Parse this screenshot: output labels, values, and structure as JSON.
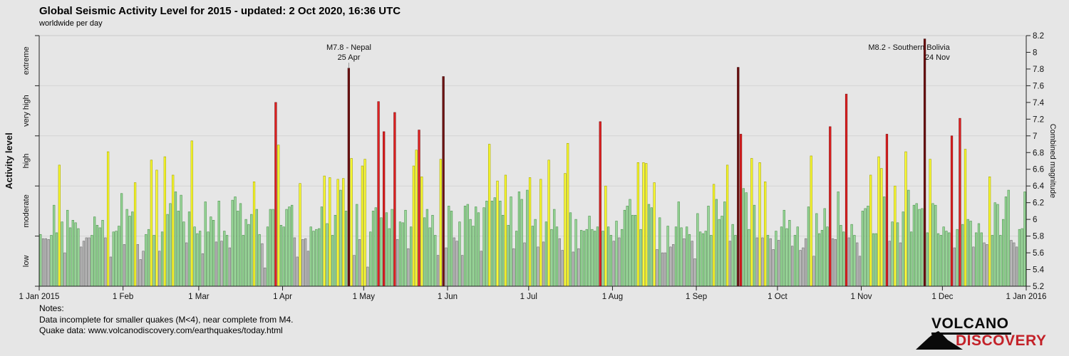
{
  "header": {
    "title": "Global Seismic Activity Level for 2015 - updated:  2 Oct 2020, 16:36 UTC",
    "subtitle": "worldwide per day"
  },
  "notes": {
    "label": "Notes:",
    "line1": "Data incomplete for smaller quakes (M<4), near complete from M4.",
    "line2": "Quake data: www.volcanodiscovery.com/earthquakes/today.html"
  },
  "logo": {
    "line1": "VOLCANO",
    "line2": "DISCOVERY"
  },
  "chart_data": {
    "type": "bar",
    "title": "Global Seismic Activity Level for 2015",
    "start_date": "2015-01-01",
    "x_ticks": [
      "1 Jan 2015",
      "1 Feb",
      "1 Mar",
      "1 Apr",
      "1 May",
      "1 Jun",
      "1 Jul",
      "1 Aug",
      "1 Sep",
      "1 Oct",
      "1 Nov",
      "1 Dec",
      "1 Jan 2016"
    ],
    "month_lengths": [
      31,
      28,
      31,
      30,
      31,
      30,
      31,
      31,
      30,
      31,
      30,
      31
    ],
    "y_axis_left": {
      "title": "Activity level"
    },
    "y_axis_right": {
      "title": "Combined magnitude",
      "min": 5.2,
      "max": 8.2,
      "step": 0.2
    },
    "grid": true,
    "activity_bands": [
      {
        "label": "low",
        "min": 5.2,
        "max": 5.8,
        "fill": "#b9b9b9",
        "stroke": "#6f6f6f"
      },
      {
        "label": "moderate",
        "min": 5.8,
        "max": 6.4,
        "fill": "#99d699",
        "stroke": "#4c934c"
      },
      {
        "label": "high",
        "min": 6.4,
        "max": 7.0,
        "fill": "#fbfb33",
        "stroke": "#a3a300"
      },
      {
        "label": "very high",
        "min": 7.0,
        "max": 7.6,
        "fill": "#e32021",
        "stroke": "#7e0f0f"
      },
      {
        "label": "extreme",
        "min": 7.6,
        "max": 8.3,
        "fill": "#6e1111",
        "stroke": "#420808"
      }
    ],
    "annotations": [
      {
        "lines": [
          "M7.8 - Nepal",
          "25 Apr"
        ],
        "day_of_year": 115,
        "align": "center",
        "connector": true
      },
      {
        "lines": [
          "M8.2 - Southern Bolivia",
          "24 Nov"
        ],
        "day_of_year": 328,
        "align": "end",
        "connector": false
      }
    ],
    "daily_magnitudes": [
      5.82,
      5.77,
      5.77,
      5.76,
      5.81,
      6.17,
      5.84,
      6.65,
      5.97,
      5.6,
      6.11,
      5.9,
      5.99,
      5.96,
      5.89,
      5.67,
      5.74,
      5.78,
      5.78,
      5.81,
      6.03,
      5.93,
      5.9,
      5.99,
      5.78,
      6.81,
      5.55,
      5.85,
      5.86,
      5.92,
      6.31,
      5.7,
      6.12,
      6.04,
      6.09,
      6.44,
      5.7,
      5.52,
      5.62,
      5.82,
      5.88,
      6.71,
      5.81,
      6.59,
      5.62,
      5.85,
      6.75,
      6.06,
      6.19,
      6.53,
      6.33,
      6.1,
      6.29,
      5.97,
      5.72,
      6.09,
      6.94,
      5.91,
      5.83,
      5.86,
      5.59,
      6.21,
      5.85,
      6.03,
      5.99,
      5.73,
      6.22,
      5.74,
      5.86,
      5.81,
      5.66,
      6.23,
      6.27,
      6.1,
      6.19,
      5.81,
      6.0,
      5.94,
      6.06,
      6.45,
      6.12,
      5.82,
      5.71,
      5.42,
      5.91,
      6.12,
      6.12,
      7.4,
      6.89,
      5.93,
      5.91,
      6.12,
      6.15,
      6.17,
      5.78,
      5.55,
      6.43,
      5.76,
      5.77,
      5.62,
      5.91,
      5.86,
      5.88,
      5.89,
      6.15,
      6.52,
      5.95,
      6.5,
      5.81,
      6.05,
      6.48,
      6.35,
      6.49,
      6.1,
      7.81,
      6.73,
      5.57,
      6.18,
      5.76,
      6.64,
      6.72,
      5.43,
      5.85,
      6.1,
      6.14,
      7.41,
      6.02,
      7.05,
      6.08,
      5.89,
      6.12,
      7.28,
      5.76,
      5.97,
      5.96,
      6.11,
      5.65,
      5.91,
      6.64,
      6.83,
      7.07,
      6.51,
      6.02,
      6.12,
      5.9,
      6.05,
      5.81,
      5.57,
      6.72,
      7.71,
      5.66,
      6.16,
      6.1,
      5.78,
      5.74,
      5.97,
      5.57,
      6.16,
      6.18,
      6.0,
      5.92,
      6.15,
      6.08,
      5.62,
      6.14,
      6.22,
      6.9,
      6.22,
      6.26,
      6.46,
      6.22,
      6.05,
      6.53,
      5.93,
      6.27,
      5.65,
      5.86,
      6.33,
      6.24,
      5.72,
      6.35,
      6.5,
      5.92,
      6.0,
      5.67,
      6.48,
      5.73,
      5.97,
      6.71,
      5.88,
      6.12,
      5.91,
      5.77,
      5.63,
      6.55,
      6.91,
      6.08,
      5.61,
      6.0,
      5.65,
      5.87,
      5.86,
      5.88,
      6.04,
      5.88,
      5.86,
      5.91,
      7.17,
      5.86,
      6.4,
      5.91,
      5.81,
      5.74,
      5.98,
      5.78,
      5.88,
      6.11,
      6.16,
      6.24,
      6.05,
      6.05,
      6.68,
      5.88,
      6.68,
      6.67,
      6.18,
      6.14,
      6.44,
      5.64,
      6.02,
      5.6,
      5.6,
      5.92,
      5.67,
      5.7,
      5.91,
      6.21,
      5.9,
      5.77,
      5.91,
      5.82,
      5.74,
      5.53,
      6.07,
      5.85,
      5.83,
      5.86,
      6.16,
      5.81,
      6.42,
      6.24,
      6.0,
      6.04,
      6.21,
      6.65,
      5.74,
      5.94,
      5.81,
      7.82,
      7.02,
      6.37,
      6.32,
      5.88,
      6.73,
      6.17,
      5.78,
      6.68,
      5.78,
      6.45,
      5.81,
      5.77,
      5.64,
      5.86,
      5.75,
      5.91,
      6.11,
      5.89,
      5.99,
      5.68,
      5.81,
      5.91,
      5.63,
      5.66,
      5.77,
      6.15,
      6.76,
      5.56,
      6.07,
      5.83,
      5.87,
      6.13,
      5.91,
      7.11,
      5.77,
      5.76,
      6.33,
      5.93,
      5.85,
      7.5,
      5.78,
      5.94,
      5.81,
      5.72,
      5.56,
      6.1,
      6.13,
      6.16,
      6.53,
      5.83,
      5.83,
      6.75,
      6.61,
      6.27,
      7.02,
      5.74,
      5.97,
      6.4,
      5.96,
      5.72,
      6.09,
      6.81,
      6.35,
      5.85,
      6.17,
      6.19,
      6.12,
      6.13,
      8.16,
      5.84,
      6.72,
      6.19,
      6.17,
      5.83,
      5.81,
      5.91,
      5.86,
      5.84,
      7.0,
      5.66,
      5.88,
      7.21,
      5.94,
      6.84,
      6.0,
      5.98,
      5.67,
      5.84,
      5.95,
      5.84,
      5.72,
      5.7,
      6.51,
      5.81,
      6.2,
      6.18,
      5.81,
      6.0,
      6.27,
      6.35,
      5.75,
      5.72,
      5.67,
      5.88,
      5.89,
      6.33
    ]
  }
}
